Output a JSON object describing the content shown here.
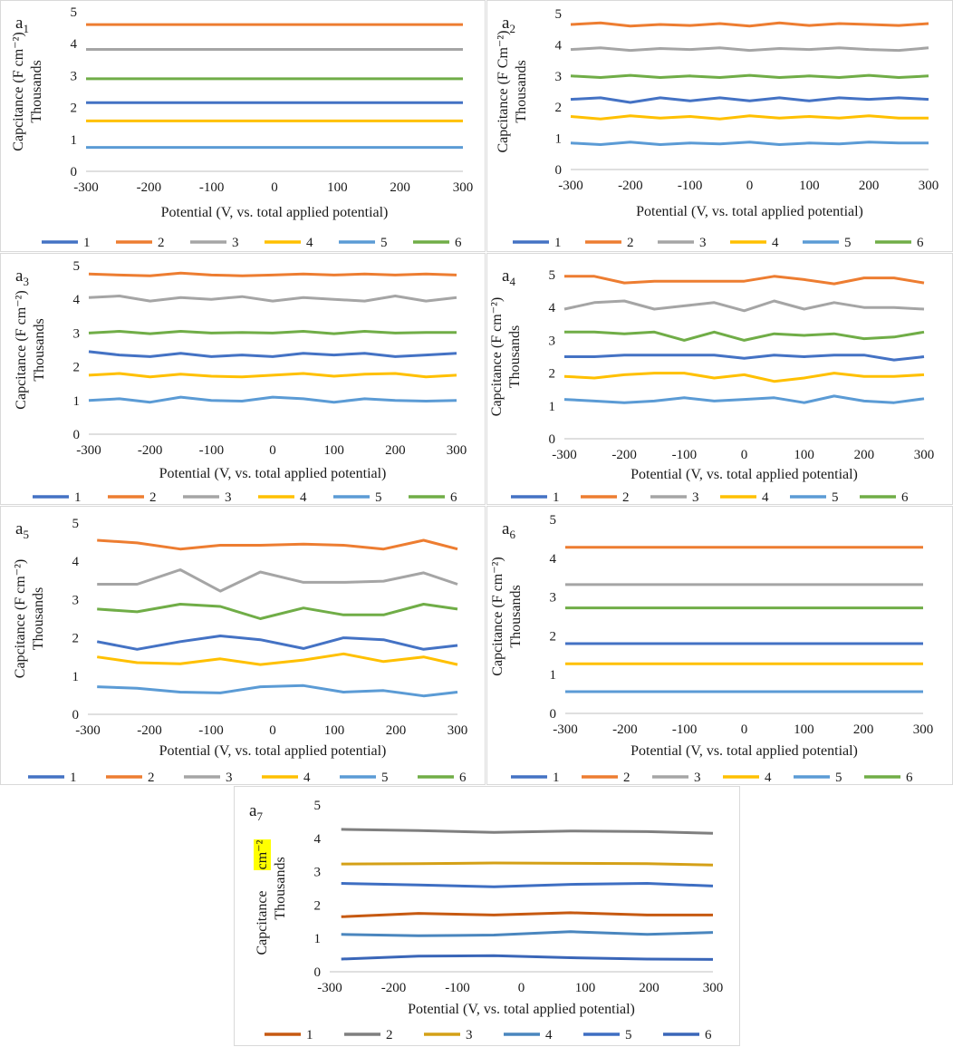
{
  "chart_data": [
    {
      "type": "line",
      "panel": "a1",
      "panel_letter": "a",
      "panel_sub": "1",
      "ylabel": "Capcitance (F cm⁻²)",
      "ylabel_unit": "Thousands",
      "xlabel": "Potential (V, vs. total applied potential)",
      "xlim": [
        -300,
        300
      ],
      "ylim": [
        0,
        5
      ],
      "xticks": [
        -300,
        -200,
        -100,
        0,
        100,
        200,
        300
      ],
      "yticks": [
        0,
        1,
        2,
        3,
        4,
        5
      ],
      "x": [
        -300,
        -200,
        -100,
        0,
        100,
        200,
        300
      ],
      "series": [
        {
          "name": "1",
          "color": "#4472c4",
          "values": [
            2.15,
            2.15,
            2.15,
            2.15,
            2.15,
            2.15,
            2.15
          ]
        },
        {
          "name": "2",
          "color": "#ed7d31",
          "values": [
            4.6,
            4.6,
            4.6,
            4.6,
            4.6,
            4.6,
            4.6
          ]
        },
        {
          "name": "3",
          "color": "#a5a5a5",
          "values": [
            3.82,
            3.82,
            3.82,
            3.82,
            3.82,
            3.82,
            3.82
          ]
        },
        {
          "name": "4",
          "color": "#ffc000",
          "values": [
            1.58,
            1.58,
            1.58,
            1.58,
            1.58,
            1.58,
            1.58
          ]
        },
        {
          "name": "5",
          "color": "#5b9bd5",
          "values": [
            0.75,
            0.75,
            0.75,
            0.75,
            0.75,
            0.75,
            0.75
          ]
        },
        {
          "name": "6",
          "color": "#70ad47",
          "values": [
            2.9,
            2.9,
            2.9,
            2.9,
            2.9,
            2.9,
            2.9
          ]
        }
      ]
    },
    {
      "type": "line",
      "panel": "a2",
      "panel_letter": "a",
      "panel_sub": "2",
      "ylabel": "Capcitance (F Cm⁻²)",
      "ylabel_unit": "Thousands",
      "xlabel": "Potential (V, vs. total applied potential)",
      "xlim": [
        -300,
        300
      ],
      "ylim": [
        0,
        5
      ],
      "xticks": [
        -300,
        -200,
        -100,
        0,
        100,
        200,
        300
      ],
      "yticks": [
        0,
        1,
        2,
        3,
        4,
        5
      ],
      "x": [
        -300,
        -250,
        -200,
        -150,
        -100,
        -50,
        0,
        50,
        100,
        150,
        200,
        250,
        300
      ],
      "series": [
        {
          "name": "1",
          "color": "#4472c4",
          "values": [
            2.25,
            2.3,
            2.15,
            2.3,
            2.2,
            2.3,
            2.2,
            2.3,
            2.2,
            2.3,
            2.25,
            2.3,
            2.25
          ]
        },
        {
          "name": "2",
          "color": "#ed7d31",
          "values": [
            4.65,
            4.7,
            4.6,
            4.65,
            4.62,
            4.68,
            4.6,
            4.7,
            4.62,
            4.68,
            4.65,
            4.62,
            4.68
          ]
        },
        {
          "name": "3",
          "color": "#a5a5a5",
          "values": [
            3.85,
            3.9,
            3.82,
            3.88,
            3.85,
            3.9,
            3.82,
            3.88,
            3.85,
            3.9,
            3.85,
            3.82,
            3.9
          ]
        },
        {
          "name": "4",
          "color": "#ffc000",
          "values": [
            1.7,
            1.62,
            1.72,
            1.65,
            1.7,
            1.62,
            1.72,
            1.65,
            1.7,
            1.65,
            1.72,
            1.65,
            1.65
          ]
        },
        {
          "name": "5",
          "color": "#5b9bd5",
          "values": [
            0.85,
            0.8,
            0.88,
            0.8,
            0.85,
            0.82,
            0.88,
            0.8,
            0.85,
            0.82,
            0.88,
            0.85,
            0.85
          ]
        },
        {
          "name": "6",
          "color": "#70ad47",
          "values": [
            3.0,
            2.95,
            3.02,
            2.95,
            3.0,
            2.95,
            3.02,
            2.95,
            3.0,
            2.95,
            3.02,
            2.95,
            3.0
          ]
        }
      ]
    },
    {
      "type": "line",
      "panel": "a3",
      "panel_letter": "a",
      "panel_sub": "3",
      "ylabel": "Capcitance (F cm⁻²)",
      "ylabel_unit": "Thousands",
      "xlabel": "Potential (V, vs. total applied potential)",
      "xlim": [
        -300,
        300
      ],
      "ylim": [
        0,
        5
      ],
      "xticks": [
        -300,
        -200,
        -100,
        0,
        100,
        200,
        300
      ],
      "yticks": [
        0,
        1,
        2,
        3,
        4,
        5
      ],
      "x": [
        -300,
        -250,
        -200,
        -150,
        -100,
        -50,
        0,
        50,
        100,
        150,
        200,
        250,
        300
      ],
      "series": [
        {
          "name": "1",
          "color": "#4472c4",
          "values": [
            2.45,
            2.35,
            2.3,
            2.4,
            2.3,
            2.35,
            2.3,
            2.4,
            2.35,
            2.4,
            2.3,
            2.35,
            2.4
          ]
        },
        {
          "name": "2",
          "color": "#ed7d31",
          "values": [
            4.75,
            4.72,
            4.7,
            4.78,
            4.72,
            4.7,
            4.72,
            4.75,
            4.72,
            4.75,
            4.72,
            4.75,
            4.72
          ]
        },
        {
          "name": "3",
          "color": "#a5a5a5",
          "values": [
            4.05,
            4.1,
            3.95,
            4.05,
            4.0,
            4.08,
            3.95,
            4.05,
            4.0,
            3.95,
            4.1,
            3.95,
            4.05
          ]
        },
        {
          "name": "4",
          "color": "#ffc000",
          "values": [
            1.75,
            1.8,
            1.7,
            1.78,
            1.72,
            1.7,
            1.75,
            1.8,
            1.72,
            1.78,
            1.8,
            1.7,
            1.75
          ]
        },
        {
          "name": "5",
          "color": "#5b9bd5",
          "values": [
            1.0,
            1.05,
            0.95,
            1.1,
            1.0,
            0.98,
            1.1,
            1.05,
            0.95,
            1.05,
            1.0,
            0.98,
            1.0
          ]
        },
        {
          "name": "6",
          "color": "#70ad47",
          "values": [
            3.0,
            3.05,
            2.98,
            3.05,
            3.0,
            3.02,
            3.0,
            3.05,
            2.98,
            3.05,
            3.0,
            3.02,
            3.02
          ]
        }
      ]
    },
    {
      "type": "line",
      "panel": "a4",
      "panel_letter": "a",
      "panel_sub": "4",
      "ylabel": "Capcitance (F cm⁻²)",
      "ylabel_unit": "Thousands",
      "xlabel": "Potential (V, vs. total applied potential)",
      "xlim": [
        -300,
        300
      ],
      "ylim": [
        0,
        5
      ],
      "xticks": [
        -300,
        -200,
        -100,
        0,
        100,
        200,
        300
      ],
      "yticks": [
        0,
        1,
        2,
        3,
        4,
        5
      ],
      "x": [
        -300,
        -250,
        -200,
        -150,
        -100,
        -50,
        0,
        50,
        100,
        150,
        200,
        250,
        300
      ],
      "series": [
        {
          "name": "1",
          "color": "#4472c4",
          "values": [
            2.5,
            2.5,
            2.55,
            2.55,
            2.55,
            2.55,
            2.45,
            2.55,
            2.5,
            2.55,
            2.55,
            2.4,
            2.5
          ]
        },
        {
          "name": "2",
          "color": "#ed7d31",
          "values": [
            4.95,
            4.95,
            4.75,
            4.8,
            4.8,
            4.8,
            4.8,
            4.95,
            4.85,
            4.72,
            4.9,
            4.9,
            4.75
          ]
        },
        {
          "name": "3",
          "color": "#a5a5a5",
          "values": [
            3.95,
            4.15,
            4.2,
            3.95,
            4.05,
            4.15,
            3.9,
            4.2,
            3.95,
            4.15,
            4.0,
            4.0,
            3.95
          ]
        },
        {
          "name": "4",
          "color": "#ffc000",
          "values": [
            1.9,
            1.85,
            1.95,
            2.0,
            2.0,
            1.85,
            1.95,
            1.75,
            1.85,
            2.0,
            1.9,
            1.9,
            1.95
          ]
        },
        {
          "name": "5",
          "color": "#5b9bd5",
          "values": [
            1.2,
            1.15,
            1.1,
            1.15,
            1.25,
            1.15,
            1.2,
            1.25,
            1.1,
            1.3,
            1.15,
            1.1,
            1.22
          ]
        },
        {
          "name": "6",
          "color": "#70ad47",
          "values": [
            3.25,
            3.25,
            3.2,
            3.25,
            3.0,
            3.25,
            3.0,
            3.2,
            3.15,
            3.2,
            3.05,
            3.1,
            3.25
          ]
        }
      ]
    },
    {
      "type": "line",
      "panel": "a5",
      "panel_letter": "a",
      "panel_sub": "5",
      "ylabel": "Capcitance (F cm⁻²)",
      "ylabel_unit": "Thousands",
      "xlabel": "Potential (V, vs. total applied potential)",
      "xlim": [
        -300,
        300
      ],
      "ylim": [
        0,
        5
      ],
      "xticks": [
        -300,
        -200,
        -100,
        0,
        100,
        200,
        300
      ],
      "yticks": [
        0,
        1,
        2,
        3,
        4,
        5
      ],
      "x": [
        -285,
        -220,
        -150,
        -85,
        -20,
        50,
        115,
        180,
        245,
        300
      ],
      "series": [
        {
          "name": "1",
          "color": "#4472c4",
          "values": [
            1.9,
            1.7,
            1.9,
            2.05,
            1.95,
            1.72,
            2.0,
            1.95,
            1.7,
            1.8
          ]
        },
        {
          "name": "2",
          "color": "#ed7d31",
          "values": [
            4.55,
            4.48,
            4.32,
            4.42,
            4.42,
            4.45,
            4.42,
            4.32,
            4.55,
            4.32
          ]
        },
        {
          "name": "3",
          "color": "#a5a5a5",
          "values": [
            3.4,
            3.4,
            3.78,
            3.22,
            3.72,
            3.45,
            3.45,
            3.48,
            3.7,
            3.4
          ]
        },
        {
          "name": "4",
          "color": "#ffc000",
          "values": [
            1.5,
            1.35,
            1.32,
            1.45,
            1.3,
            1.42,
            1.58,
            1.38,
            1.5,
            1.3
          ]
        },
        {
          "name": "5",
          "color": "#5b9bd5",
          "values": [
            0.72,
            0.68,
            0.58,
            0.56,
            0.72,
            0.75,
            0.58,
            0.62,
            0.48,
            0.58
          ]
        },
        {
          "name": "6",
          "color": "#70ad47",
          "values": [
            2.75,
            2.68,
            2.88,
            2.82,
            2.5,
            2.78,
            2.6,
            2.6,
            2.88,
            2.75
          ]
        }
      ]
    },
    {
      "type": "line",
      "panel": "a6",
      "panel_letter": "a",
      "panel_sub": "6",
      "ylabel": "Capcitance (F cm⁻²)",
      "ylabel_unit": "Thousands",
      "xlabel": "Potential (V, vs. total applied potential)",
      "xlim": [
        -300,
        300
      ],
      "ylim": [
        0,
        5
      ],
      "xticks": [
        -300,
        -200,
        -100,
        0,
        100,
        200,
        300
      ],
      "yticks": [
        0,
        1,
        2,
        3,
        4,
        5
      ],
      "x": [
        -300,
        -200,
        -100,
        0,
        100,
        200,
        300
      ],
      "series": [
        {
          "name": "1",
          "color": "#4472c4",
          "values": [
            1.8,
            1.8,
            1.8,
            1.8,
            1.8,
            1.8,
            1.8
          ]
        },
        {
          "name": "2",
          "color": "#ed7d31",
          "values": [
            4.28,
            4.28,
            4.28,
            4.28,
            4.28,
            4.28,
            4.28
          ]
        },
        {
          "name": "3",
          "color": "#a5a5a5",
          "values": [
            3.32,
            3.32,
            3.32,
            3.32,
            3.32,
            3.32,
            3.32
          ]
        },
        {
          "name": "4",
          "color": "#ffc000",
          "values": [
            1.28,
            1.28,
            1.28,
            1.28,
            1.28,
            1.28,
            1.28
          ]
        },
        {
          "name": "5",
          "color": "#5b9bd5",
          "values": [
            0.56,
            0.56,
            0.56,
            0.56,
            0.56,
            0.56,
            0.56
          ]
        },
        {
          "name": "6",
          "color": "#70ad47",
          "values": [
            2.72,
            2.72,
            2.72,
            2.72,
            2.72,
            2.72,
            2.72
          ]
        }
      ]
    },
    {
      "type": "line",
      "panel": "a7",
      "panel_letter": "a",
      "panel_sub": "7",
      "ylabel": "Capcitance",
      "ylabel_highlight": "cm⁻²",
      "ylabel_unit": "Thousands",
      "xlabel": "Potential (V, vs. total applied potential)",
      "xlim": [
        -300,
        300
      ],
      "ylim": [
        0,
        5
      ],
      "xticks": [
        -300,
        -200,
        -100,
        0,
        100,
        200,
        300
      ],
      "yticks": [
        0,
        1,
        2,
        3,
        4,
        5
      ],
      "x": [
        -282,
        -161,
        -43,
        77,
        197,
        300
      ],
      "series": [
        {
          "name": "1",
          "color": "#c65911",
          "values": [
            1.65,
            1.75,
            1.7,
            1.77,
            1.7,
            1.7
          ]
        },
        {
          "name": "2",
          "color": "#7f7f7f",
          "values": [
            4.27,
            4.23,
            4.18,
            4.22,
            4.2,
            4.15
          ]
        },
        {
          "name": "3",
          "color": "#d4a017",
          "values": [
            3.23,
            3.24,
            3.26,
            3.25,
            3.24,
            3.2
          ]
        },
        {
          "name": "4",
          "color": "#4a86be",
          "values": [
            1.12,
            1.08,
            1.1,
            1.2,
            1.12,
            1.18
          ]
        },
        {
          "name": "5",
          "color": "#3e6ec2",
          "values": [
            2.65,
            2.6,
            2.55,
            2.62,
            2.65,
            2.57
          ]
        },
        {
          "name": "6",
          "color": "#3a66b8",
          "values": [
            0.38,
            0.47,
            0.48,
            0.42,
            0.38,
            0.37
          ]
        }
      ]
    }
  ]
}
